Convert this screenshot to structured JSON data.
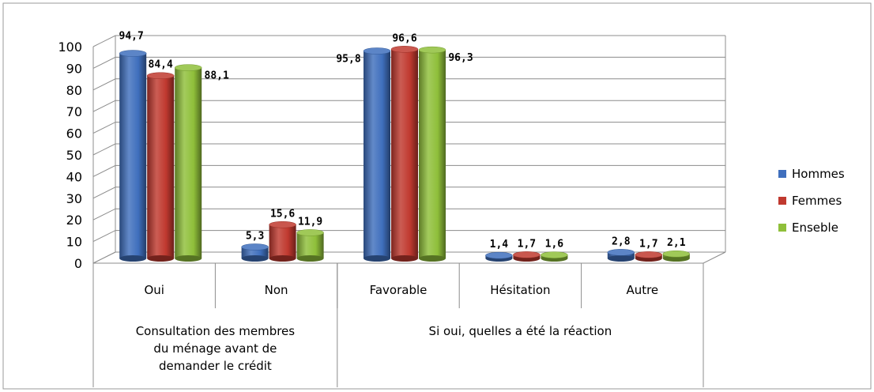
{
  "chart_data": {
    "type": "bar",
    "title": "",
    "xlabel": "",
    "ylabel": "",
    "ylim": [
      0,
      100
    ],
    "yticks": [
      0,
      10,
      20,
      30,
      40,
      50,
      60,
      70,
      80,
      90,
      100
    ],
    "grid": true,
    "legend_position": "right",
    "categories": [
      "Oui",
      "Non",
      "Favorable",
      "Hésitation",
      "Autre"
    ],
    "groups": [
      {
        "label": "Consultation des membres du ménage avant de demander le crédit",
        "categories": [
          "Oui",
          "Non"
        ]
      },
      {
        "label": "Si oui, quelles a été la réaction",
        "categories": [
          "Favorable",
          "Hésitation",
          "Autre"
        ]
      }
    ],
    "series": [
      {
        "name": "Hommes",
        "color": "#3f6fbd",
        "values": [
          94.7,
          5.3,
          95.8,
          1.4,
          2.8
        ],
        "labels": [
          "94,7",
          "5,3",
          "95,8",
          "1,4",
          "2,8"
        ]
      },
      {
        "name": "Femmes",
        "color": "#c0392f",
        "values": [
          84.4,
          15.6,
          96.6,
          1.7,
          1.7
        ],
        "labels": [
          "84,4",
          "15,6",
          "96,6",
          "1,7",
          "1,7"
        ]
      },
      {
        "name": "Enseble",
        "color": "#8fbf3a",
        "values": [
          88.1,
          11.9,
          96.3,
          1.6,
          2.1
        ],
        "labels": [
          "88,1",
          "11,9",
          "96,3",
          "1,6",
          "2,1"
        ]
      }
    ]
  }
}
